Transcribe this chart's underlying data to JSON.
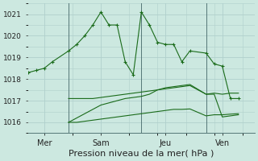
{
  "bg_color": "#cce8e0",
  "line_color": "#1a6b1a",
  "grid_color": "#b0d0cc",
  "xlabel": "Pression niveau de la mer( hPa )",
  "xlabel_fontsize": 8,
  "ylim": [
    1015.5,
    1021.5
  ],
  "yticks": [
    1016,
    1017,
    1018,
    1019,
    1020,
    1021
  ],
  "xlim": [
    0.0,
    14.0
  ],
  "day_positions": [
    1.0,
    4.5,
    8.5,
    12.0
  ],
  "day_labels": [
    "Mer",
    "Sam",
    "Jeu",
    "Ven"
  ],
  "vline_positions": [
    2.5,
    7.0,
    11.0
  ],
  "series1_x": [
    0.0,
    0.5,
    1.0,
    1.5,
    2.5,
    3.0,
    3.5,
    4.0,
    4.5,
    5.0,
    5.5,
    6.0,
    6.5,
    7.0,
    7.5,
    8.0,
    8.5,
    9.0,
    9.5,
    10.0,
    11.0,
    11.5,
    12.0,
    12.5,
    13.0
  ],
  "series1_y": [
    1018.3,
    1018.4,
    1018.5,
    1018.8,
    1019.3,
    1019.6,
    1020.0,
    1020.5,
    1021.1,
    1020.5,
    1020.5,
    1018.8,
    1018.2,
    1021.1,
    1020.5,
    1019.7,
    1019.6,
    1019.6,
    1018.8,
    1019.3,
    1019.2,
    1018.7,
    1018.6,
    1017.1,
    1017.1
  ],
  "series2_x": [
    2.5,
    3.0,
    3.5,
    4.0,
    4.5,
    5.0,
    5.5,
    6.0,
    6.5,
    7.0,
    7.5,
    8.0,
    8.5,
    9.0,
    9.5,
    10.0,
    11.0,
    11.5,
    12.0,
    12.5,
    13.0
  ],
  "series2_y": [
    1016.0,
    1016.2,
    1016.4,
    1016.6,
    1016.8,
    1016.9,
    1017.0,
    1017.1,
    1017.15,
    1017.2,
    1017.3,
    1017.5,
    1017.6,
    1017.65,
    1017.7,
    1017.75,
    1017.3,
    1017.3,
    1016.25,
    1016.3,
    1016.35
  ],
  "series3_x": [
    2.5,
    3.0,
    3.5,
    4.0,
    4.5,
    5.0,
    5.5,
    6.0,
    6.5,
    7.0,
    7.5,
    8.0,
    8.5,
    9.0,
    9.5,
    10.0,
    11.0,
    11.5,
    12.0,
    12.5,
    13.0
  ],
  "series3_y": [
    1017.1,
    1017.1,
    1017.1,
    1017.1,
    1017.15,
    1017.2,
    1017.25,
    1017.3,
    1017.35,
    1017.4,
    1017.45,
    1017.5,
    1017.55,
    1017.6,
    1017.65,
    1017.7,
    1017.3,
    1017.35,
    1017.3,
    1017.35,
    1017.35
  ],
  "series4_x": [
    2.5,
    3.0,
    3.5,
    4.0,
    4.5,
    5.0,
    5.5,
    6.0,
    6.5,
    7.0,
    7.5,
    8.0,
    8.5,
    9.0,
    9.5,
    10.0,
    11.0,
    11.5,
    12.0,
    12.5,
    13.0
  ],
  "series4_y": [
    1016.0,
    1016.0,
    1016.05,
    1016.1,
    1016.15,
    1016.2,
    1016.25,
    1016.3,
    1016.35,
    1016.4,
    1016.45,
    1016.5,
    1016.55,
    1016.6,
    1016.6,
    1016.62,
    1016.3,
    1016.35,
    1016.35,
    1016.38,
    1016.4
  ]
}
